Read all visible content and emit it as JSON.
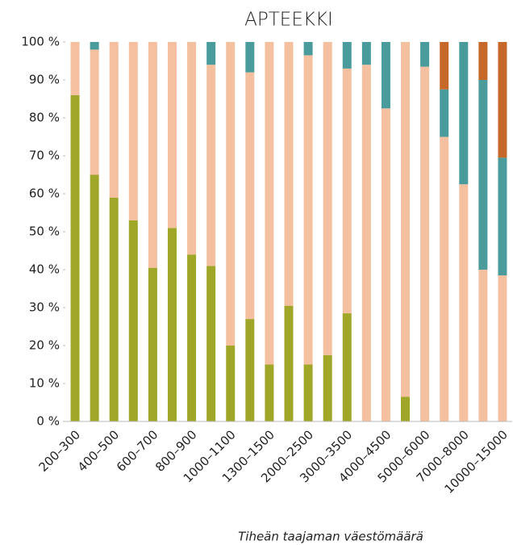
{
  "chart_data": {
    "type": "stacked_bar",
    "title": "APTEEKKI",
    "x_label": "Tiheän taajaman väestömäärä",
    "categories": [
      "200–300",
      null,
      "400–500",
      null,
      "600–700",
      null,
      "800–900",
      null,
      "1000–1100",
      null,
      "1300–1500",
      null,
      "2000–2500",
      null,
      "3000–3500",
      null,
      "4000–4500",
      null,
      "5000–6000",
      null,
      "7000–8000",
      null,
      "10000–15000"
    ],
    "series": [
      {
        "color": "#a0a628",
        "values": [
          86,
          65,
          59,
          53,
          40.5,
          51,
          44,
          41,
          20,
          27,
          15,
          30.5,
          15,
          17.5,
          28.5,
          0,
          0,
          6.5,
          0,
          0,
          0,
          0,
          0
        ]
      },
      {
        "color": "#f4c0a0",
        "values": [
          14,
          33,
          41,
          47,
          59.5,
          49,
          56,
          53,
          80,
          65,
          85,
          69.5,
          81.5,
          82.5,
          64.5,
          94,
          82.5,
          93.5,
          93.5,
          75,
          62.5,
          40,
          38.5
        ]
      },
      {
        "color": "#4a9c9c",
        "values": [
          0,
          2,
          0,
          0,
          0,
          0,
          0,
          6,
          0,
          8,
          0,
          0,
          3.5,
          0,
          7,
          6,
          17.5,
          0,
          6.5,
          12.5,
          37.5,
          50,
          31
        ]
      },
      {
        "color": "#c5682a",
        "values": [
          0,
          0,
          0,
          0,
          0,
          0,
          0,
          0,
          0,
          0,
          0,
          0,
          0,
          0,
          0,
          0,
          0,
          0,
          0,
          12.5,
          0,
          10,
          30.5
        ]
      }
    ],
    "ylim": [
      0,
      100
    ],
    "yticks": [
      {
        "value": 0,
        "label": "0 %"
      },
      {
        "value": 10,
        "label": "10 %"
      },
      {
        "value": 20,
        "label": "20 %"
      },
      {
        "value": 30,
        "label": "30 %"
      },
      {
        "value": 40,
        "label": "40 %"
      },
      {
        "value": 50,
        "label": "50 %"
      },
      {
        "value": 60,
        "label": "60 %"
      },
      {
        "value": 70,
        "label": "70 %"
      },
      {
        "value": 80,
        "label": "80 %"
      },
      {
        "value": 90,
        "label": "90 %"
      },
      {
        "value": 100,
        "label": "100 %"
      }
    ]
  }
}
